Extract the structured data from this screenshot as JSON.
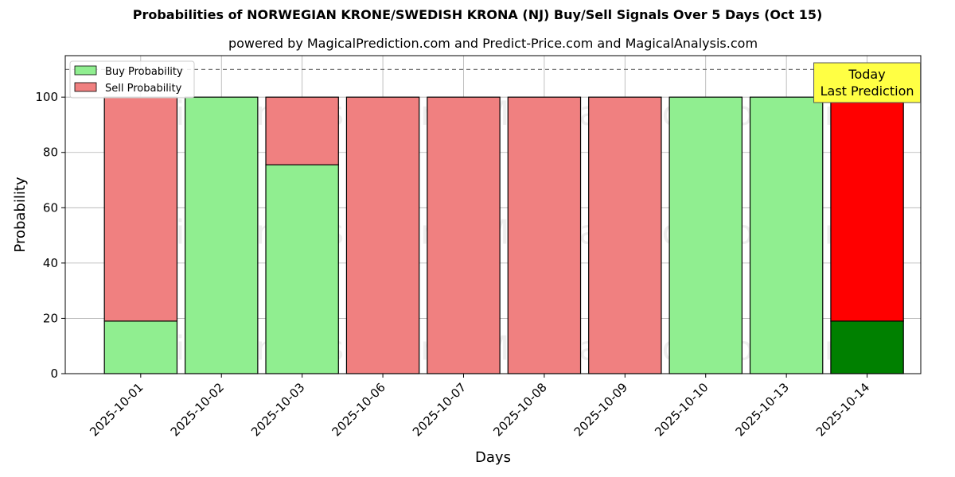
{
  "chart_data": {
    "type": "bar",
    "stacked": true,
    "title": "Probabilities of NORWEGIAN KRONE/SWEDISH KRONA (NJ) Buy/Sell Signals Over 5 Days (Oct 15)",
    "subtitle": "powered by MagicalPrediction.com and Predict-Price.com and MagicalAnalysis.com",
    "xlabel": "Days",
    "ylabel": "Probability",
    "ylim": [
      0,
      115
    ],
    "yticks": [
      0,
      20,
      40,
      60,
      80,
      100
    ],
    "reference_line": 110,
    "grid": true,
    "legend_position": "top-left",
    "categories": [
      "2025-10-01",
      "2025-10-02",
      "2025-10-03",
      "2025-10-06",
      "2025-10-07",
      "2025-10-08",
      "2025-10-09",
      "2025-10-10",
      "2025-10-13",
      "2025-10-14"
    ],
    "series": [
      {
        "name": "Buy Probability",
        "color": "#90ee90",
        "values": [
          19,
          100,
          75.5,
          0,
          0,
          0,
          0,
          100,
          100,
          19
        ]
      },
      {
        "name": "Sell Probability",
        "color": "#f08080",
        "values": [
          81,
          0,
          24.5,
          100,
          100,
          100,
          100,
          0,
          0,
          81
        ]
      }
    ],
    "highlight": {
      "index": 9,
      "buy_color": "#008000",
      "sell_color": "#ff0000"
    },
    "annotation": {
      "line1": "Today",
      "line2": "Last Prediction",
      "background": "#ffff44"
    },
    "watermarks": [
      "MagicalAnalysis.com",
      "MagicalPrediction.com"
    ]
  }
}
